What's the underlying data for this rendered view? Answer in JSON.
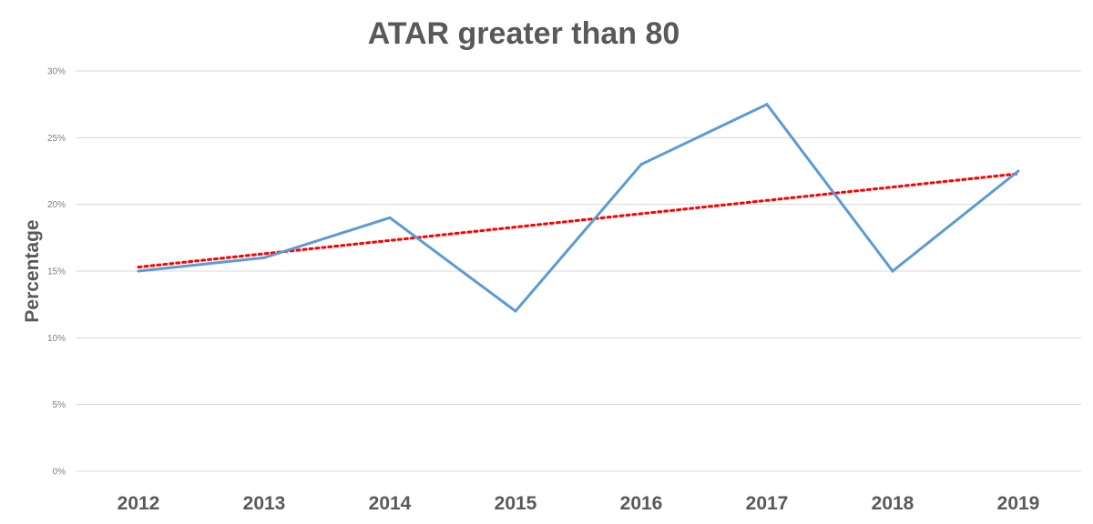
{
  "chart_data": {
    "type": "line",
    "title": "ATAR greater than 80",
    "xlabel": "",
    "ylabel": "Percentage",
    "categories": [
      "2012",
      "2013",
      "2014",
      "2015",
      "2016",
      "2017",
      "2018",
      "2019"
    ],
    "series": [
      {
        "values": [
          15,
          16,
          19,
          12,
          23,
          27.5,
          15,
          22.5
        ],
        "color": "#5b9bd5"
      }
    ],
    "trendline": {
      "kind": "linear",
      "values": [
        15.3,
        16.3,
        17.3,
        18.3,
        19.3,
        20.3,
        21.3,
        22.3
      ],
      "color": "#ff0000",
      "style": "dotted"
    },
    "ylim": [
      0,
      30
    ],
    "yticks": [
      0,
      5,
      10,
      15,
      20,
      25,
      30
    ],
    "ytick_labels": [
      "0%",
      "5%",
      "10%",
      "15%",
      "20%",
      "25%",
      "30%"
    ],
    "grid": true,
    "legend": "none"
  }
}
